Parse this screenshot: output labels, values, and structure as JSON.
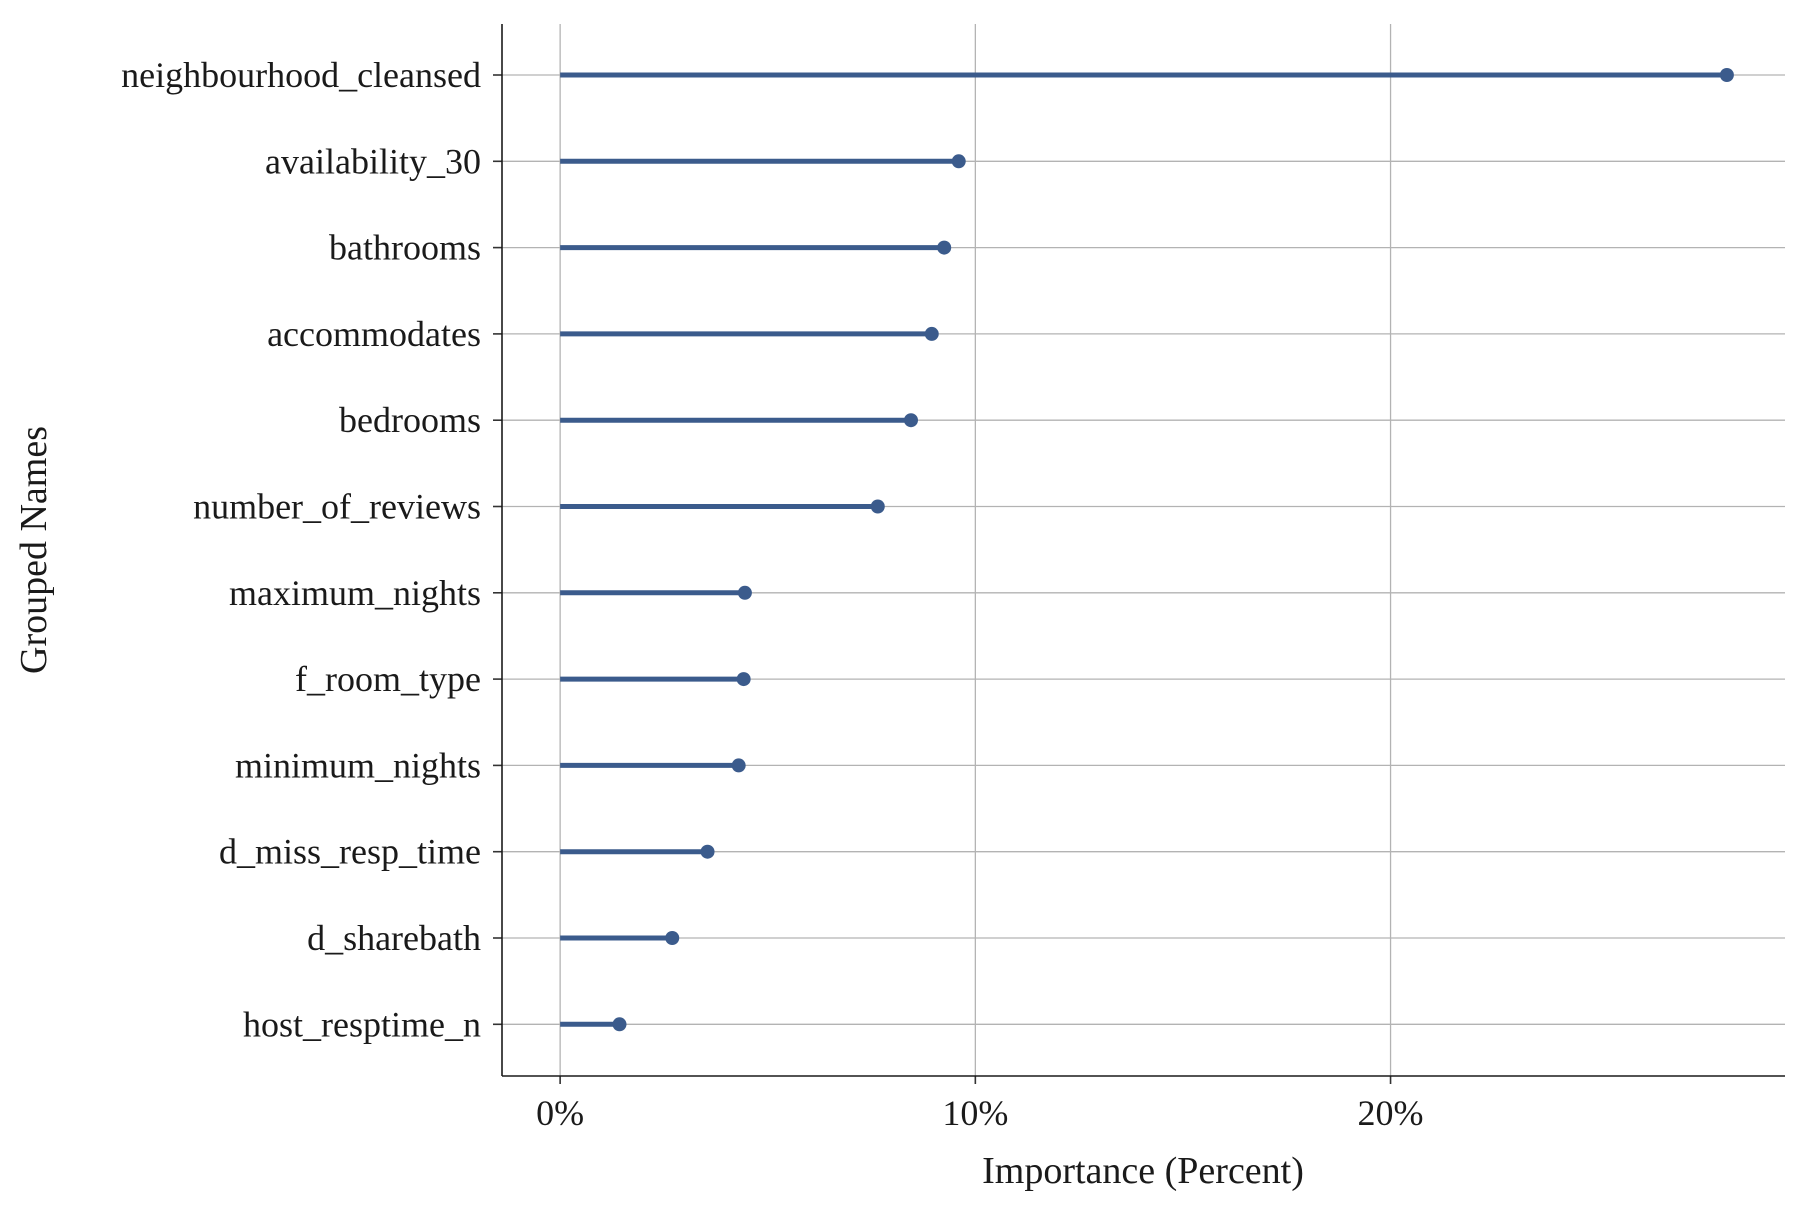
{
  "chart_data": {
    "type": "lollipop",
    "xlabel": "Importance (Percent)",
    "ylabel": "Grouped Names",
    "xlim": [
      -0.014,
      0.295
    ],
    "x_ticks": [
      0,
      0.1,
      0.2
    ],
    "x_tick_labels": [
      "0%",
      "10%",
      "20%"
    ],
    "grid": true,
    "color": "#3b5b8c",
    "categories": [
      "neighbourhood_cleansed",
      "availability_30",
      "bathrooms",
      "accommodates",
      "bedrooms",
      "number_of_reviews",
      "maximum_nights",
      "f_room_type",
      "minimum_nights",
      "d_miss_resp_time",
      "d_sharebath",
      "host_resptime_n"
    ],
    "values": [
      0.281,
      0.096,
      0.0925,
      0.0895,
      0.0845,
      0.0765,
      0.0445,
      0.0442,
      0.043,
      0.0355,
      0.027,
      0.0143
    ]
  }
}
